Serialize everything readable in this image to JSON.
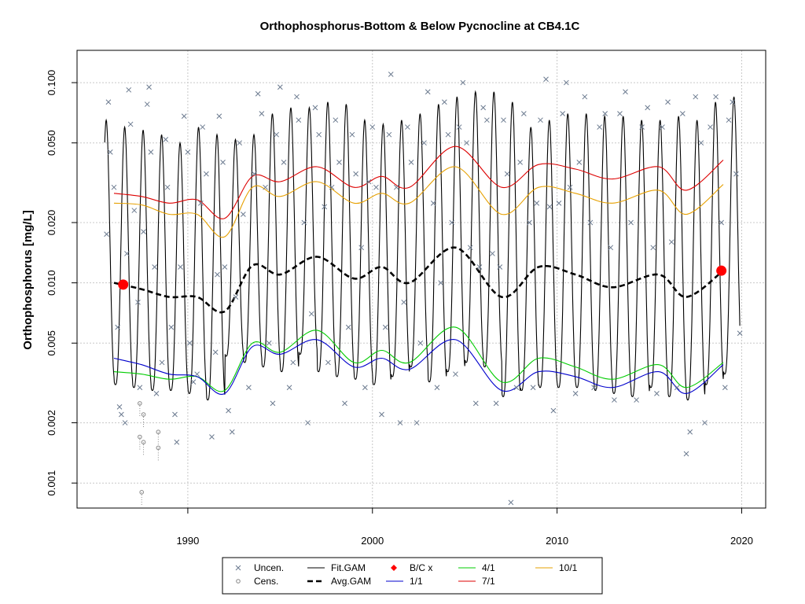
{
  "chart_data": {
    "type": "line",
    "title": "Orthophosphorus-Bottom & Below Pycnocline at CB4.1C",
    "xlabel": "",
    "ylabel": "Orthophosphorus [mg/L]",
    "y_scale": "log",
    "xlim": [
      1984,
      2021.3
    ],
    "ylim": [
      0.00075,
      0.145
    ],
    "x_ticks": [
      1990,
      2000,
      2010,
      2020
    ],
    "x_tick_labels": [
      "1990",
      "2000",
      "2010",
      "2020"
    ],
    "y_ticks": [
      0.001,
      0.002,
      0.005,
      0.01,
      0.02,
      0.05,
      0.1
    ],
    "y_tick_labels": [
      "0.001",
      "0.002",
      "0.005",
      "0.010",
      "0.020",
      "0.050",
      "0.100"
    ],
    "grid": true,
    "legend_position": "bottom",
    "colors": {
      "uncen": "#6b7a8f",
      "cens": "#888888",
      "fit": "#000000",
      "avg": "#000000",
      "bc": "#ff0000",
      "apr": "#00cc00",
      "jan": "#0000cc",
      "jul": "#dd0000",
      "oct": "#e6a000"
    },
    "legend": [
      {
        "key": "uncen",
        "label": "Uncen."
      },
      {
        "key": "cens",
        "label": "Cens."
      },
      {
        "key": "fit",
        "label": "Fit.GAM"
      },
      {
        "key": "avg",
        "label": "Avg.GAM"
      },
      {
        "key": "bc",
        "label": "B/C x"
      },
      {
        "key": "jan",
        "label": "1/1"
      },
      {
        "key": "apr",
        "label": "4/1"
      },
      {
        "key": "jul",
        "label": "7/1"
      },
      {
        "key": "oct",
        "label": "10/1"
      }
    ],
    "series": [
      {
        "name": "Avg.GAM",
        "key": "avg",
        "x": [
          1986.0,
          1987.5,
          1989.0,
          1990.5,
          1992.0,
          1993.5,
          1995.0,
          1997.0,
          1999.0,
          2000.5,
          2002.0,
          2004.5,
          2007.0,
          2009.0,
          2011.0,
          2013.0,
          2015.5,
          2017.0,
          2019.0
        ],
        "y": [
          0.01,
          0.0093,
          0.0085,
          0.0085,
          0.0072,
          0.0122,
          0.011,
          0.0135,
          0.0105,
          0.012,
          0.01,
          0.015,
          0.0085,
          0.012,
          0.011,
          0.0095,
          0.011,
          0.0085,
          0.0115
        ]
      },
      {
        "name": "7/1",
        "key": "jul",
        "x": [
          1986.0,
          1987.5,
          1989.0,
          1990.5,
          1992.0,
          1993.5,
          1995.0,
          1997.0,
          1999.0,
          2000.5,
          2002.0,
          2004.5,
          2007.0,
          2009.0,
          2011.0,
          2013.0,
          2015.5,
          2017.0,
          2019.0
        ],
        "y": [
          0.028,
          0.027,
          0.025,
          0.026,
          0.021,
          0.034,
          0.032,
          0.038,
          0.03,
          0.034,
          0.03,
          0.048,
          0.03,
          0.039,
          0.037,
          0.033,
          0.038,
          0.029,
          0.041
        ]
      },
      {
        "name": "10/1",
        "key": "oct",
        "x": [
          1986.0,
          1987.5,
          1989.0,
          1990.5,
          1992.0,
          1993.5,
          1995.0,
          1997.0,
          1999.0,
          2000.5,
          2002.0,
          2004.5,
          2007.0,
          2009.0,
          2011.0,
          2013.0,
          2015.5,
          2017.0,
          2019.0
        ],
        "y": [
          0.025,
          0.0245,
          0.022,
          0.022,
          0.017,
          0.03,
          0.027,
          0.032,
          0.025,
          0.028,
          0.025,
          0.038,
          0.022,
          0.03,
          0.028,
          0.025,
          0.029,
          0.022,
          0.031
        ]
      },
      {
        "name": "4/1",
        "key": "apr",
        "x": [
          1986.0,
          1987.5,
          1989.0,
          1990.5,
          1992.0,
          1993.5,
          1995.0,
          1997.0,
          1999.0,
          2000.5,
          2002.0,
          2004.5,
          2007.0,
          2009.0,
          2011.0,
          2013.0,
          2015.5,
          2017.0,
          2019.0
        ],
        "y": [
          0.0036,
          0.0035,
          0.0033,
          0.0034,
          0.0029,
          0.005,
          0.0045,
          0.0058,
          0.004,
          0.0046,
          0.004,
          0.006,
          0.0032,
          0.0042,
          0.0038,
          0.0033,
          0.0039,
          0.003,
          0.004
        ]
      },
      {
        "name": "1/1",
        "key": "jan",
        "x": [
          1986.0,
          1987.5,
          1989.0,
          1990.5,
          1992.0,
          1993.5,
          1995.0,
          1997.0,
          1999.0,
          2000.5,
          2002.0,
          2004.5,
          2007.0,
          2009.0,
          2011.0,
          2013.0,
          2015.5,
          2017.0,
          2019.0
        ],
        "y": [
          0.0042,
          0.0039,
          0.0035,
          0.0034,
          0.0028,
          0.0048,
          0.0044,
          0.0052,
          0.0038,
          0.0042,
          0.0037,
          0.0052,
          0.0029,
          0.0036,
          0.0034,
          0.003,
          0.0036,
          0.0028,
          0.0039
        ]
      },
      {
        "name": "Fit.GAM",
        "key": "fit",
        "x_start": 1985.5,
        "x_end": 2019.9,
        "peak_month_frac": 0.58,
        "annual_peaks": [
          0.065,
          0.06,
          0.058,
          0.055,
          0.05,
          0.06,
          0.055,
          0.052,
          0.055,
          0.07,
          0.075,
          0.075,
          0.08,
          0.078,
          0.065,
          0.062,
          0.065,
          0.07,
          0.078,
          0.085,
          0.09,
          0.09,
          0.08,
          0.06,
          0.065,
          0.07,
          0.07,
          0.068,
          0.068,
          0.065,
          0.065,
          0.068,
          0.065,
          0.08,
          0.085
        ],
        "annual_troughs": [
          0.0032,
          0.0031,
          0.003,
          0.0029,
          0.0029,
          0.0028,
          0.0026,
          0.0043,
          0.004,
          0.0038,
          0.0036,
          0.0044,
          0.0036,
          0.0034,
          0.0033,
          0.0031,
          0.0034,
          0.0038,
          0.0032,
          0.0036,
          0.004,
          0.0038,
          0.0027,
          0.0029,
          0.003,
          0.003,
          0.003,
          0.0029,
          0.0028,
          0.0027,
          0.003,
          0.0027,
          0.0026,
          0.0031,
          0.0035
        ]
      },
      {
        "name": "B/C x",
        "key": "bc",
        "x": [
          1986.5,
          2018.9
        ],
        "y": [
          0.0098,
          0.0115
        ]
      },
      {
        "name": "Uncen.",
        "key": "uncen",
        "points": [
          [
            1985.6,
            0.0175
          ],
          [
            1985.7,
            0.08
          ],
          [
            1985.8,
            0.045
          ],
          [
            1986.0,
            0.03
          ],
          [
            1986.2,
            0.006
          ],
          [
            1986.3,
            0.0024
          ],
          [
            1986.4,
            0.0022
          ],
          [
            1986.6,
            0.002
          ],
          [
            1986.7,
            0.014
          ],
          [
            1986.8,
            0.092
          ],
          [
            1986.9,
            0.062
          ],
          [
            1987.1,
            0.023
          ],
          [
            1987.3,
            0.008
          ],
          [
            1987.4,
            0.003
          ],
          [
            1987.6,
            0.018
          ],
          [
            1987.8,
            0.078
          ],
          [
            1987.9,
            0.095
          ],
          [
            1988.0,
            0.045
          ],
          [
            1988.2,
            0.012
          ],
          [
            1988.3,
            0.0028
          ],
          [
            1988.6,
            0.004
          ],
          [
            1988.8,
            0.052
          ],
          [
            1988.9,
            0.03
          ],
          [
            1989.1,
            0.006
          ],
          [
            1989.3,
            0.0022
          ],
          [
            1989.4,
            0.0016
          ],
          [
            1989.6,
            0.012
          ],
          [
            1989.8,
            0.068
          ],
          [
            1990.0,
            0.045
          ],
          [
            1990.1,
            0.005
          ],
          [
            1990.3,
            0.0032
          ],
          [
            1990.5,
            0.0035
          ],
          [
            1990.7,
            0.025
          ],
          [
            1990.8,
            0.06
          ],
          [
            1991.0,
            0.035
          ],
          [
            1991.3,
            0.0017
          ],
          [
            1991.5,
            0.0045
          ],
          [
            1991.6,
            0.011
          ],
          [
            1991.7,
            0.068
          ],
          [
            1991.9,
            0.04
          ],
          [
            1992.0,
            0.012
          ],
          [
            1992.2,
            0.0023
          ],
          [
            1992.4,
            0.0018
          ],
          [
            1992.6,
            0.0085
          ],
          [
            1992.8,
            0.05
          ],
          [
            1993.0,
            0.022
          ],
          [
            1993.3,
            0.003
          ],
          [
            1993.6,
            0.035
          ],
          [
            1993.8,
            0.088
          ],
          [
            1994.0,
            0.07
          ],
          [
            1994.2,
            0.03
          ],
          [
            1994.4,
            0.005
          ],
          [
            1994.6,
            0.0025
          ],
          [
            1994.8,
            0.055
          ],
          [
            1995.0,
            0.095
          ],
          [
            1995.2,
            0.04
          ],
          [
            1995.5,
            0.003
          ],
          [
            1995.7,
            0.004
          ],
          [
            1995.9,
            0.085
          ],
          [
            1996.0,
            0.065
          ],
          [
            1996.3,
            0.02
          ],
          [
            1996.5,
            0.002
          ],
          [
            1996.7,
            0.007
          ],
          [
            1996.9,
            0.075
          ],
          [
            1997.1,
            0.055
          ],
          [
            1997.4,
            0.024
          ],
          [
            1997.6,
            0.004
          ],
          [
            1997.8,
            0.03
          ],
          [
            1998.0,
            0.065
          ],
          [
            1998.2,
            0.04
          ],
          [
            1998.5,
            0.0025
          ],
          [
            1998.7,
            0.006
          ],
          [
            1998.9,
            0.055
          ],
          [
            1999.1,
            0.035
          ],
          [
            1999.4,
            0.015
          ],
          [
            1999.6,
            0.003
          ],
          [
            1999.8,
            0.032
          ],
          [
            2000.0,
            0.06
          ],
          [
            2000.2,
            0.03
          ],
          [
            2000.5,
            0.0022
          ],
          [
            2000.7,
            0.006
          ],
          [
            2000.9,
            0.055
          ],
          [
            2001.0,
            0.11
          ],
          [
            2001.3,
            0.03
          ],
          [
            2001.5,
            0.002
          ],
          [
            2001.7,
            0.008
          ],
          [
            2001.9,
            0.06
          ],
          [
            2002.1,
            0.04
          ],
          [
            2002.4,
            0.002
          ],
          [
            2002.6,
            0.005
          ],
          [
            2002.8,
            0.05
          ],
          [
            2003.0,
            0.09
          ],
          [
            2003.3,
            0.025
          ],
          [
            2003.5,
            0.003
          ],
          [
            2003.7,
            0.01
          ],
          [
            2003.9,
            0.08
          ],
          [
            2004.1,
            0.055
          ],
          [
            2004.3,
            0.02
          ],
          [
            2004.5,
            0.0035
          ],
          [
            2004.7,
            0.06
          ],
          [
            2004.9,
            0.1
          ],
          [
            2005.1,
            0.05
          ],
          [
            2005.3,
            0.015
          ],
          [
            2005.6,
            0.0025
          ],
          [
            2005.8,
            0.012
          ],
          [
            2006.0,
            0.075
          ],
          [
            2006.2,
            0.065
          ],
          [
            2006.5,
            0.014
          ],
          [
            2006.7,
            0.0025
          ],
          [
            2006.9,
            0.012
          ],
          [
            2007.1,
            0.065
          ],
          [
            2007.3,
            0.035
          ],
          [
            2007.5,
            0.0008
          ],
          [
            2007.8,
            0.003
          ],
          [
            2008.0,
            0.04
          ],
          [
            2008.2,
            0.07
          ],
          [
            2008.5,
            0.02
          ],
          [
            2008.7,
            0.003
          ],
          [
            2008.9,
            0.025
          ],
          [
            2009.1,
            0.065
          ],
          [
            2009.4,
            0.104
          ],
          [
            2009.6,
            0.024
          ],
          [
            2009.8,
            0.0023
          ],
          [
            2010.1,
            0.025
          ],
          [
            2010.3,
            0.07
          ],
          [
            2010.5,
            0.1
          ],
          [
            2010.7,
            0.03
          ],
          [
            2011.0,
            0.0028
          ],
          [
            2011.2,
            0.04
          ],
          [
            2011.5,
            0.085
          ],
          [
            2011.8,
            0.02
          ],
          [
            2012.0,
            0.003
          ],
          [
            2012.3,
            0.06
          ],
          [
            2012.6,
            0.07
          ],
          [
            2012.9,
            0.015
          ],
          [
            2013.1,
            0.0026
          ],
          [
            2013.4,
            0.07
          ],
          [
            2013.7,
            0.09
          ],
          [
            2014.0,
            0.02
          ],
          [
            2014.3,
            0.0026
          ],
          [
            2014.6,
            0.06
          ],
          [
            2014.9,
            0.075
          ],
          [
            2015.2,
            0.015
          ],
          [
            2015.4,
            0.0028
          ],
          [
            2015.7,
            0.06
          ],
          [
            2016.0,
            0.08
          ],
          [
            2016.2,
            0.016
          ],
          [
            2016.5,
            0.003
          ],
          [
            2016.8,
            0.07
          ],
          [
            2017.0,
            0.0014
          ],
          [
            2017.2,
            0.0018
          ],
          [
            2017.5,
            0.085
          ],
          [
            2017.8,
            0.05
          ],
          [
            2018.0,
            0.002
          ],
          [
            2018.3,
            0.06
          ],
          [
            2018.6,
            0.085
          ],
          [
            2018.9,
            0.02
          ],
          [
            2019.1,
            0.003
          ],
          [
            2019.3,
            0.065
          ],
          [
            2019.5,
            0.08
          ],
          [
            2019.7,
            0.035
          ],
          [
            2019.9,
            0.0056
          ]
        ]
      },
      {
        "name": "Cens.",
        "key": "cens",
        "points": [
          [
            1987.4,
            0.0025
          ],
          [
            1987.4,
            0.0017
          ],
          [
            1987.5,
            0.0009
          ],
          [
            1987.6,
            0.0022
          ],
          [
            1987.6,
            0.0016
          ],
          [
            1988.4,
            0.0018
          ],
          [
            1988.4,
            0.0015
          ]
        ]
      }
    ]
  }
}
